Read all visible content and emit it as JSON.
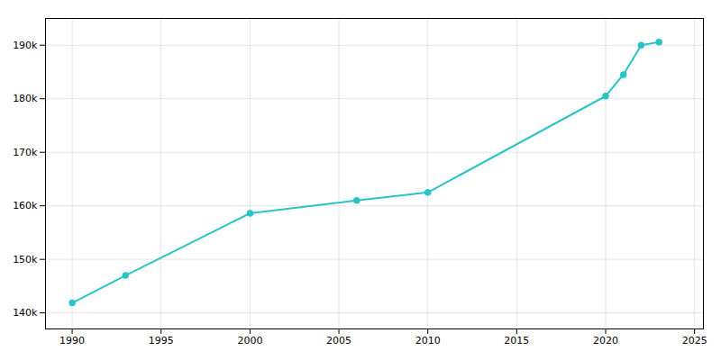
{
  "chart_data": {
    "type": "line",
    "x": [
      1990,
      1993,
      2000,
      2006,
      2010,
      2020,
      2021,
      2022,
      2023
    ],
    "values": [
      141865,
      147000,
      158600,
      161000,
      162500,
      180500,
      184500,
      190000,
      190600
    ],
    "color": "#2bc4c4",
    "marker": "circle",
    "xlim": [
      1988.5,
      2025.5
    ],
    "ylim": [
      137000,
      195000
    ],
    "xticks": [
      1990,
      1995,
      2000,
      2005,
      2010,
      2015,
      2020,
      2025
    ],
    "yticks": [
      {
        "value": 140000,
        "label": "140k"
      },
      {
        "value": 150000,
        "label": "150k"
      },
      {
        "value": 160000,
        "label": "160k"
      },
      {
        "value": 170000,
        "label": "170k"
      },
      {
        "value": 180000,
        "label": "180k"
      },
      {
        "value": 190000,
        "label": "190k"
      }
    ],
    "grid": true
  }
}
